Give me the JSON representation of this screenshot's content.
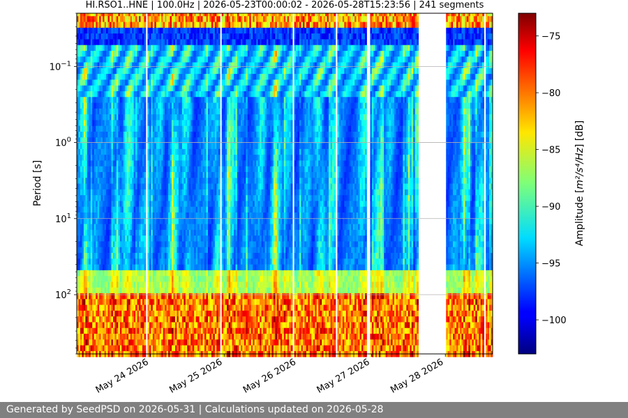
{
  "chart_data": {
    "type": "heatmap",
    "title": "HI.RSO1..HNE | 100.0Hz | 2026-05-23T00:00:02 - 2026-05-28T15:23:56 | 241 segments",
    "ylabel": "Period [s]",
    "y_scale": "log",
    "y_inverted": true,
    "ylim": [
      0.02,
      600
    ],
    "y_tick_labels": [
      {
        "value": 0.1,
        "base": "10",
        "exp": "−1"
      },
      {
        "value": 1,
        "base": "10",
        "exp": "0"
      },
      {
        "value": 10,
        "base": "10",
        "exp": "1"
      },
      {
        "value": 100,
        "base": "10",
        "exp": "2"
      }
    ],
    "x_range_dates": [
      "2026-05-23T00:00:02",
      "2026-05-28T15:23:56"
    ],
    "x_tick_labels": [
      {
        "date": "2026-05-24",
        "label": "May 24 2026"
      },
      {
        "date": "2026-05-25",
        "label": "May 25 2026"
      },
      {
        "date": "2026-05-26",
        "label": "May 26 2026"
      },
      {
        "date": "2026-05-27",
        "label": "May 27 2026"
      },
      {
        "date": "2026-05-28",
        "label": "May 28 2026"
      }
    ],
    "grid": "horizontal",
    "colormap": "jet",
    "colorbar": {
      "label_prefix": "Amplitude [",
      "label_unit": "m²/s⁴/Hz",
      "label_suffix": "] [dB]",
      "range_db": [
        -103,
        -73
      ],
      "ticks": [
        "−75",
        "−80",
        "−85",
        "−90",
        "−95",
        "−100"
      ]
    },
    "segments": 241,
    "data_gaps": [
      {
        "start": "2026-05-23T22:30",
        "end": "2026-05-23T23:00"
      },
      {
        "start": "2026-05-24T22:30",
        "end": "2026-05-24T23:00"
      },
      {
        "start": "2026-05-25T22:30",
        "end": "2026-05-25T23:00"
      },
      {
        "start": "2026-05-26T12:30",
        "end": "2026-05-26T13:00"
      },
      {
        "start": "2026-05-26T22:30",
        "end": "2026-05-26T23:30"
      },
      {
        "start": "2026-05-27T15:30",
        "end": "2026-05-28T00:00"
      },
      {
        "start": "2026-05-28T12:30",
        "end": "2026-05-28T13:00"
      }
    ]
  },
  "footer": {
    "text": "Generated by SeedPSD on 2026-05-31 | Calculations updated on 2026-05-28"
  }
}
